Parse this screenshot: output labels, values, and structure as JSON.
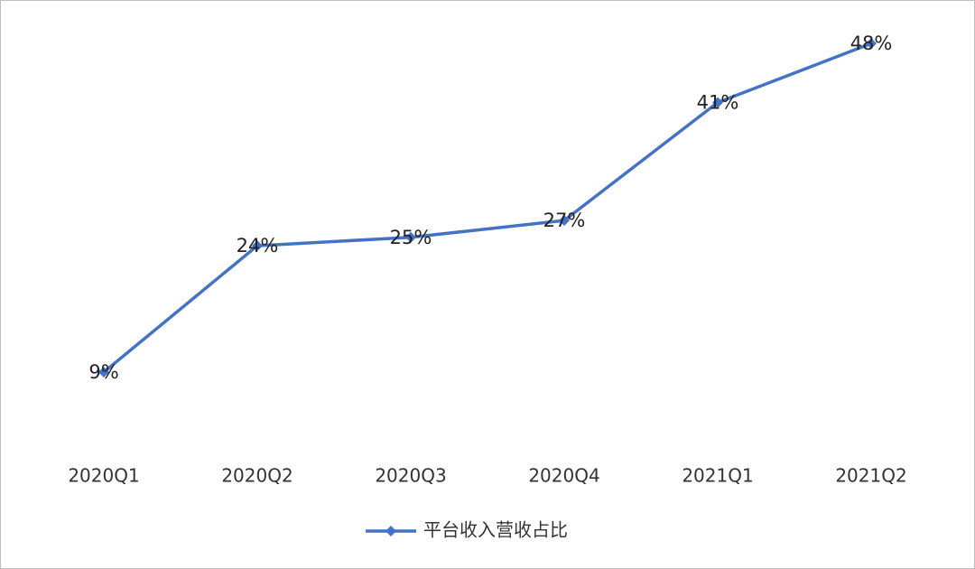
{
  "chart_data": {
    "type": "line",
    "categories": [
      "2020Q1",
      "2020Q2",
      "2020Q3",
      "2020Q4",
      "2021Q1",
      "2021Q2"
    ],
    "series": [
      {
        "name": "平台收入营收占比",
        "color": "#4472c4",
        "values": [
          9,
          24,
          25,
          27,
          41,
          48
        ],
        "value_labels": [
          "9%",
          "24%",
          "25%",
          "27%",
          "41%",
          "48%"
        ]
      }
    ],
    "ylim": [
      0,
      50
    ],
    "grid": false,
    "legend": "bottom"
  }
}
